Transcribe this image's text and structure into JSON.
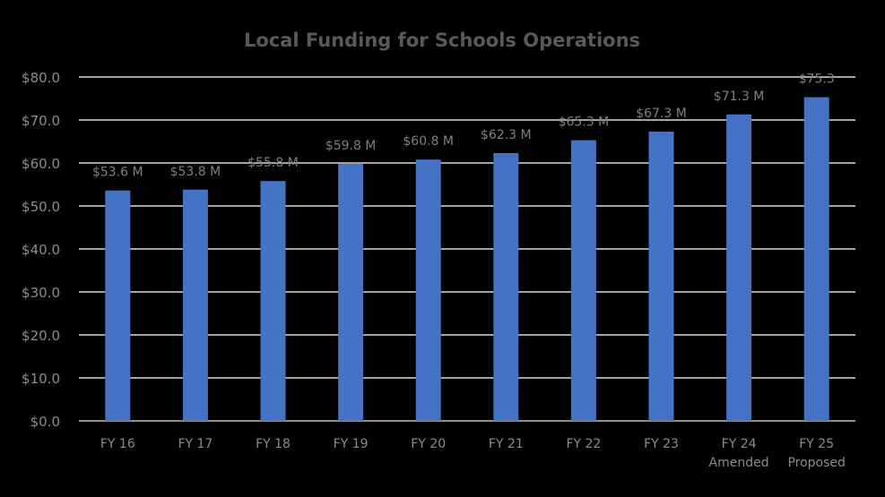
{
  "chart_data": {
    "type": "bar",
    "title": "Local Funding for Schools Operations",
    "xlabel": "",
    "ylabel": "",
    "categories": [
      [
        "FY 16"
      ],
      [
        "FY 17"
      ],
      [
        "FY 18"
      ],
      [
        "FY 19"
      ],
      [
        "FY 20"
      ],
      [
        "FY 21"
      ],
      [
        "FY 22"
      ],
      [
        "FY 23"
      ],
      [
        "FY 24",
        "Amended"
      ],
      [
        "FY 25",
        "Proposed"
      ]
    ],
    "values": [
      53.6,
      53.8,
      55.8,
      59.8,
      60.8,
      62.3,
      65.3,
      67.3,
      71.3,
      75.3
    ],
    "data_labels": [
      "$53.6 M",
      "$53.8 M",
      "$55.8 M",
      "$59.8 M",
      "$60.8 M",
      "$62.3 M",
      "$65.3 M",
      "$67.3 M",
      "$71.3 M",
      "$75.3"
    ],
    "y_ticks": [
      0,
      10,
      20,
      30,
      40,
      50,
      60,
      70,
      80
    ],
    "y_tick_labels": [
      "$0.0",
      "$10.0",
      "$20.0",
      "$30.0",
      "$40.0",
      "$50.0",
      "$60.0",
      "$70.0",
      "$80.0"
    ],
    "ylim": [
      0,
      80
    ],
    "grid": true,
    "legend": "none",
    "colors": {
      "background": "#000000",
      "bar": "#4472C4",
      "title": "#595959",
      "tick_label": "#8C8C8C",
      "data_label": "#7F7F7F",
      "gridline": "#D9D9D9",
      "axis_line": "#BFBFBF"
    }
  }
}
